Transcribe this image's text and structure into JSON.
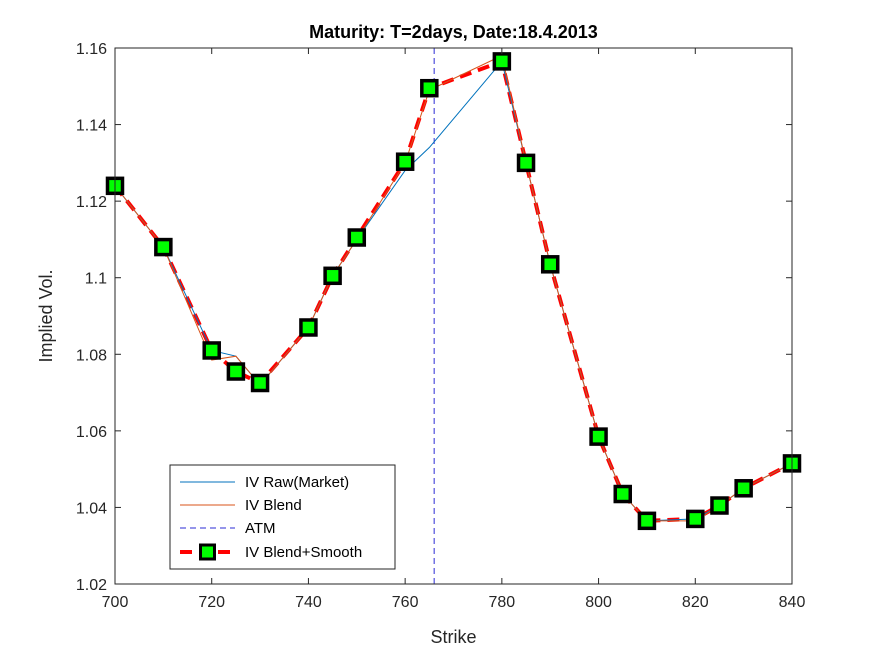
{
  "chart_data": {
    "type": "line",
    "title": "Maturity: T=2days, Date:18.4.2013",
    "xlabel": "Strike",
    "ylabel": "Implied Vol.",
    "xlim": [
      700,
      840
    ],
    "ylim": [
      1.02,
      1.16
    ],
    "xticks": [
      700,
      720,
      740,
      760,
      780,
      800,
      820,
      840
    ],
    "yticks": [
      1.02,
      1.04,
      1.06,
      1.08,
      1.1,
      1.12,
      1.14,
      1.16
    ],
    "xtick_labels": [
      "700",
      "720",
      "740",
      "760",
      "780",
      "800",
      "820",
      "840"
    ],
    "ytick_labels": [
      "1.02",
      "1.04",
      "1.06",
      "1.08",
      "1.1",
      "1.12",
      "1.14",
      "1.16"
    ],
    "grid": false,
    "legend_position": "bottom-left",
    "series": [
      {
        "name": "IV Raw(Market)",
        "style": "solid",
        "color": "#0072bd",
        "x": [
          700,
          710,
          720,
          725,
          730,
          740,
          745,
          750,
          760,
          765,
          780,
          785,
          790,
          800,
          805,
          810,
          820,
          825,
          830,
          840
        ],
        "y": [
          1.124,
          1.108,
          1.081,
          1.0795,
          1.072,
          1.087,
          1.1005,
          1.11,
          1.128,
          1.134,
          1.1565,
          1.13,
          1.1035,
          1.0585,
          1.0435,
          1.0365,
          1.037,
          1.0405,
          1.045,
          1.0515
        ]
      },
      {
        "name": "IV Blend",
        "style": "solid",
        "color": "#d95319",
        "x": [
          700,
          710,
          720,
          725,
          730,
          740,
          745,
          750,
          760,
          765,
          780,
          785,
          790,
          800,
          805,
          810,
          820,
          825,
          830,
          840
        ],
        "y": [
          1.124,
          1.108,
          1.0785,
          1.0795,
          1.072,
          1.087,
          1.1005,
          1.11,
          1.13,
          1.149,
          1.158,
          1.13,
          1.1035,
          1.0585,
          1.0435,
          1.0365,
          1.0365,
          1.0405,
          1.045,
          1.0515
        ]
      },
      {
        "name": "IV Blend+Smooth",
        "style": "dashed-markers",
        "color": "#ff0000",
        "marker_color": "#00ff00",
        "x": [
          700,
          710,
          720,
          725,
          730,
          740,
          745,
          750,
          760,
          765,
          780,
          785,
          790,
          800,
          805,
          810,
          820,
          825,
          830,
          840
        ],
        "y": [
          1.124,
          1.108,
          1.081,
          1.0755,
          1.0725,
          1.087,
          1.1005,
          1.1105,
          1.1303,
          1.1495,
          1.1565,
          1.13,
          1.1035,
          1.0585,
          1.0435,
          1.0365,
          1.037,
          1.0405,
          1.045,
          1.0515
        ]
      }
    ],
    "reference_lines": [
      {
        "name": "ATM",
        "orientation": "vertical",
        "x": 766,
        "style": "dashed",
        "color": "#2b2bd6"
      }
    ],
    "legend": [
      "IV Raw(Market)",
      "IV Blend",
      "ATM",
      "IV Blend+Smooth"
    ]
  }
}
